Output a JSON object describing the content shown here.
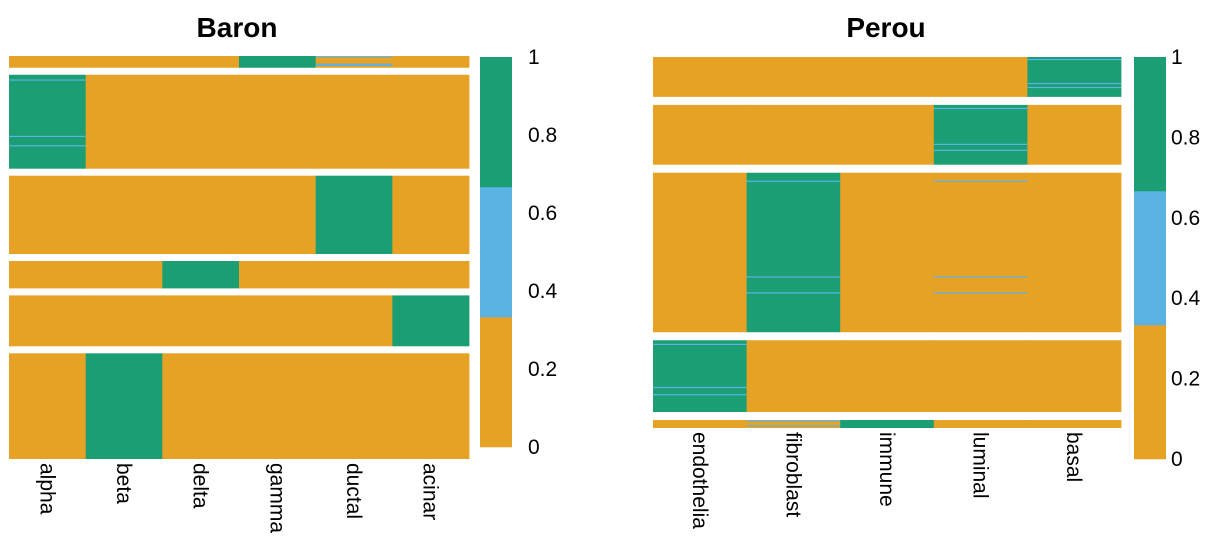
{
  "palette": {
    "low": "#E6A224",
    "mid": "#5BB3E4",
    "high": "#1C9E74"
  },
  "colorbar": {
    "ticks": [
      "0",
      "0.2",
      "0.4",
      "0.6",
      "0.8",
      "1"
    ],
    "range": [
      0,
      1
    ]
  },
  "chart_data": [
    {
      "type": "heatmap",
      "title": "Baron",
      "columns": [
        "alpha",
        "beta",
        "delta",
        "gamma",
        "ductal",
        "acinar"
      ],
      "row_blocks": [
        {
          "rows": 3,
          "high_column": "gamma",
          "streak_columns": [
            "ductal"
          ]
        },
        {
          "rows": 24,
          "high_column": "alpha",
          "streak_columns": [
            "alpha"
          ]
        },
        {
          "rows": 20,
          "high_column": "ductal",
          "streak_columns": []
        },
        {
          "rows": 7,
          "high_column": "delta",
          "streak_columns": []
        },
        {
          "rows": 13,
          "high_column": "acinar",
          "streak_columns": []
        },
        {
          "rows": 27,
          "high_column": "beta",
          "streak_columns": []
        }
      ]
    },
    {
      "type": "heatmap",
      "title": "Perou",
      "columns": [
        "endothelia",
        "fibroblast",
        "immune",
        "luminal",
        "basal"
      ],
      "row_blocks": [
        {
          "rows": 10,
          "high_column": "basal",
          "streak_columns": [
            "basal"
          ]
        },
        {
          "rows": 15,
          "high_column": "luminal",
          "streak_columns": [
            "luminal"
          ]
        },
        {
          "rows": 40,
          "high_column": "fibroblast",
          "streak_columns": [
            "fibroblast",
            "luminal"
          ]
        },
        {
          "rows": 18,
          "high_column": "endothelia",
          "streak_columns": [
            "endothelia"
          ]
        },
        {
          "rows": 2,
          "high_column": "immune",
          "streak_columns": [
            "fibroblast"
          ]
        }
      ]
    }
  ]
}
